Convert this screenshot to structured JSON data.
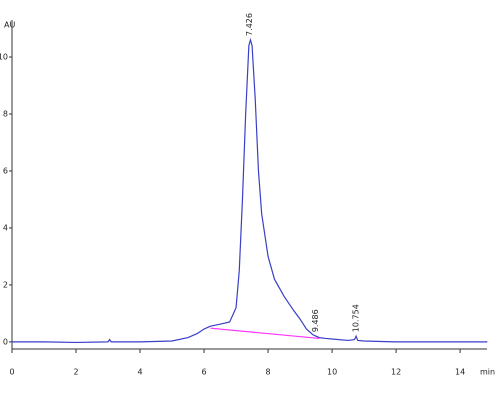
{
  "chart_data": {
    "type": "line",
    "y_label": "AU",
    "x_label": "min",
    "x": [
      0,
      1,
      2,
      3,
      3.05,
      3.1,
      3.2,
      4,
      5,
      5.5,
      5.8,
      6,
      6.2,
      6.5,
      6.8,
      7.0,
      7.1,
      7.2,
      7.3,
      7.4,
      7.45,
      7.5,
      7.6,
      7.7,
      7.8,
      8.0,
      8.2,
      8.5,
      8.8,
      9.0,
      9.2,
      9.4,
      9.5,
      9.6,
      9.8,
      10,
      10.5,
      10.7,
      10.75,
      10.8,
      11,
      12,
      13,
      14,
      14.85
    ],
    "series": [
      {
        "color": "#3a3fc8",
        "values": [
          0,
          0,
          -0.02,
          0,
          0.08,
          0,
          0,
          0,
          0.03,
          0.15,
          0.3,
          0.45,
          0.55,
          0.62,
          0.7,
          1.2,
          2.5,
          5,
          8,
          10.4,
          10.6,
          10.4,
          8.5,
          6,
          4.5,
          3,
          2.2,
          1.6,
          1.1,
          0.8,
          0.45,
          0.25,
          0.2,
          0.15,
          0.12,
          0.1,
          0.05,
          0.08,
          0.2,
          0.05,
          0.03,
          0,
          0,
          0,
          0
        ]
      }
    ],
    "baseline": {
      "x": [
        6.2,
        9.6
      ],
      "values": [
        0.48,
        0.12
      ],
      "color": "#ff33ff"
    },
    "annotations": [
      {
        "text": "7.426",
        "x": 7.426,
        "y": 10.6
      },
      {
        "text": "9.486",
        "x": 9.486,
        "y": 0.2
      },
      {
        "text": "10.754",
        "x": 10.754,
        "y": 0.2
      }
    ],
    "xlim": [
      0,
      14.84
    ],
    "ylim": [
      -0.25,
      11.3
    ],
    "xticks": [
      0,
      2,
      4,
      6,
      8,
      10,
      12,
      14
    ],
    "yticks": [
      0,
      2,
      4,
      6,
      8,
      10
    ]
  }
}
